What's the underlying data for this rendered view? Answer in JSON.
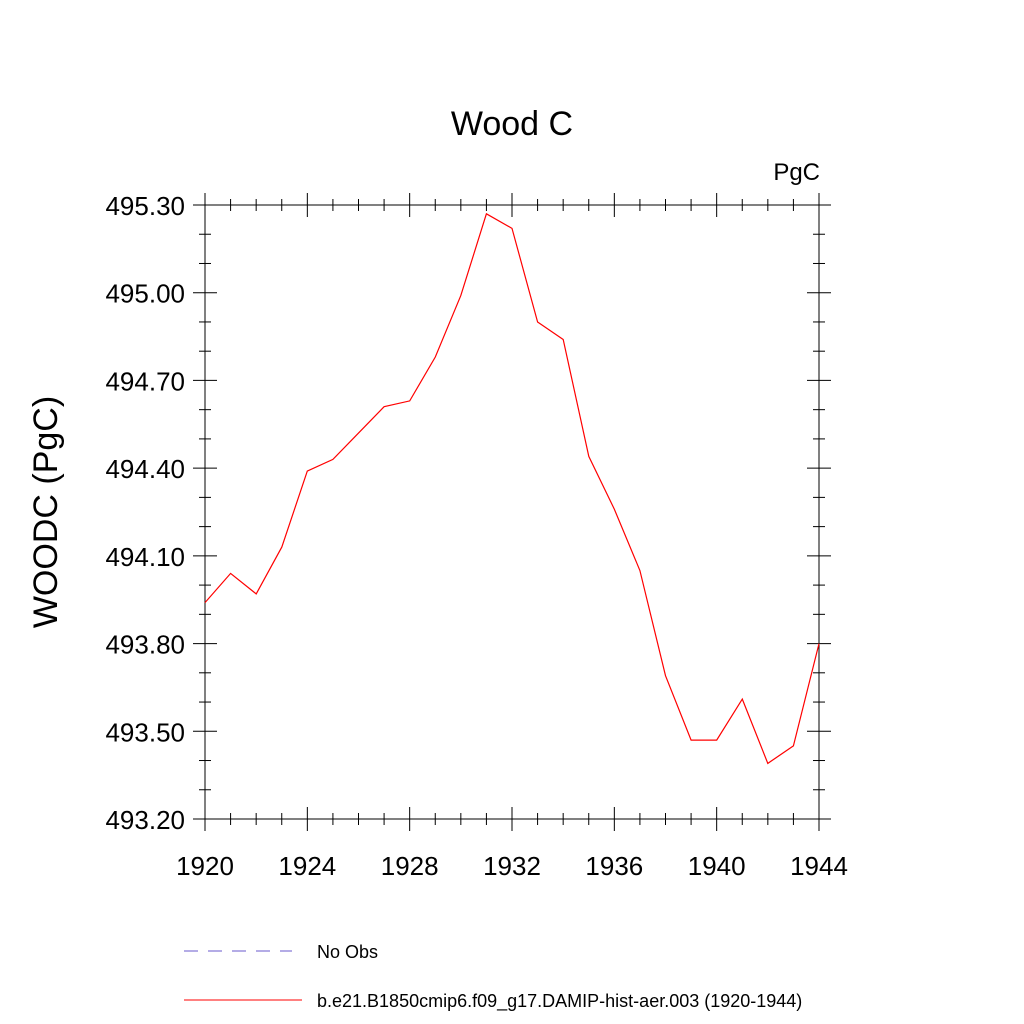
{
  "chart_data": {
    "type": "line",
    "title": "Wood C",
    "units": "PgC",
    "ylabel": "WOODC  (PgC)",
    "xlabel": "",
    "xlim": [
      1920,
      1944
    ],
    "ylim": [
      493.2,
      495.3
    ],
    "x_ticks": [
      1920,
      1924,
      1928,
      1932,
      1936,
      1940,
      1944
    ],
    "x_tick_labels": [
      "1920",
      "1924",
      "1928",
      "1932",
      "1936",
      "1940",
      "1944"
    ],
    "y_ticks": [
      493.2,
      493.5,
      493.8,
      494.1,
      494.4,
      494.7,
      495.0,
      495.3
    ],
    "y_tick_labels": [
      "493.20",
      "493.50",
      "493.80",
      "494.10",
      "494.40",
      "494.70",
      "495.00",
      "495.30"
    ],
    "grid": false,
    "legend_placement": "bottom",
    "series": [
      {
        "name": "b.e21.B1850cmip6.f09_g17.DAMIP-hist-aer.003 (1920-1944)",
        "color": "#ff0000",
        "style": "solid",
        "x": [
          1920,
          1921,
          1922,
          1923,
          1924,
          1925,
          1926,
          1927,
          1928,
          1929,
          1930,
          1931,
          1932,
          1933,
          1934,
          1935,
          1936,
          1937,
          1938,
          1939,
          1940,
          1941,
          1942,
          1943,
          1944
        ],
        "y": [
          493.94,
          494.04,
          493.97,
          494.13,
          494.39,
          494.43,
          494.52,
          494.61,
          494.63,
          494.78,
          494.99,
          495.27,
          495.22,
          494.9,
          494.84,
          494.44,
          494.26,
          494.05,
          493.69,
          493.47,
          493.47,
          493.61,
          493.39,
          493.45,
          493.8
        ]
      }
    ],
    "legend": [
      {
        "label": "No Obs",
        "color": "#6a5acd",
        "style": "dashed"
      },
      {
        "label": "b.e21.B1850cmip6.f09_g17.DAMIP-hist-aer.003 (1920-1944)",
        "color": "#ff0000",
        "style": "solid"
      }
    ]
  }
}
